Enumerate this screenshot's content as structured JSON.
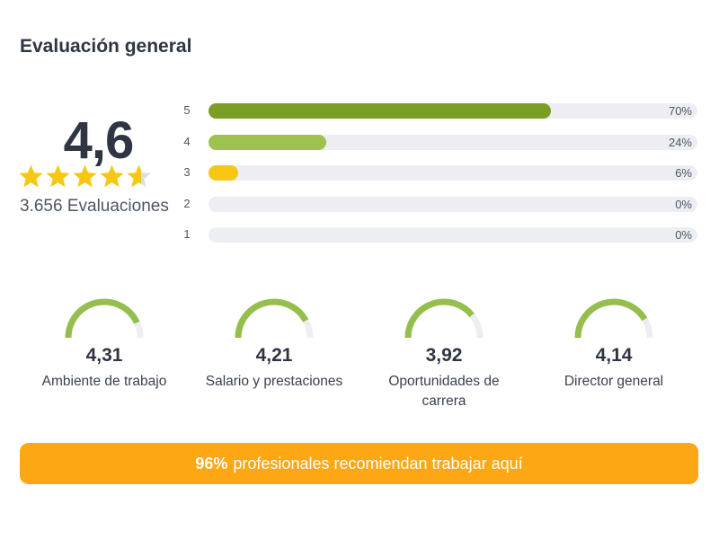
{
  "title": "Evaluación general",
  "overall": {
    "score": "4,6",
    "rating": 4.6,
    "max_stars": 5,
    "count_label": "3.656 Evaluaciones",
    "star_color": "#f6c814",
    "star_empty_color": "#dadde3"
  },
  "distribution": [
    {
      "stars": "5",
      "percent_label": "70%",
      "percent": 70,
      "color": "#7a9f24"
    },
    {
      "stars": "4",
      "percent_label": "24%",
      "percent": 24,
      "color": "#9fc24f"
    },
    {
      "stars": "3",
      "percent_label": "6%",
      "percent": 6,
      "color": "#f6c814"
    },
    {
      "stars": "2",
      "percent_label": "0%",
      "percent": 0,
      "color": "#dadde3"
    },
    {
      "stars": "1",
      "percent_label": "0%",
      "percent": 0,
      "color": "#dadde3"
    }
  ],
  "categories": [
    {
      "value": "4,31",
      "score": 4.31,
      "label": "Ambiente de trabajo"
    },
    {
      "value": "4,21",
      "score": 4.21,
      "label": "Salario y prestaciones"
    },
    {
      "value": "3,92",
      "score": 3.92,
      "label": "Oportunidades de carrera"
    },
    {
      "value": "4,14",
      "score": 4.14,
      "label": "Director general"
    }
  ],
  "gauge_colors": {
    "fill": "#94bf4d",
    "track": "#eceef1"
  },
  "recommend": {
    "percent": "96%",
    "text": "profesionales recomiendan trabajar aquí",
    "color": "#fda714"
  }
}
